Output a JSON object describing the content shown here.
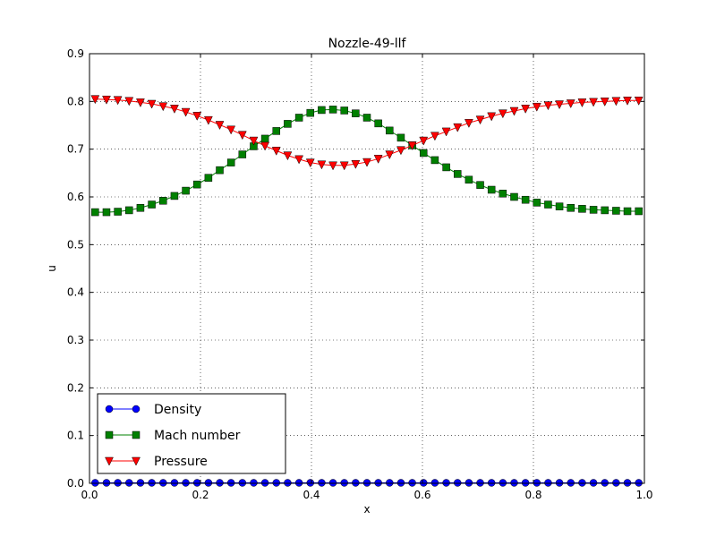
{
  "chart_data": {
    "type": "line",
    "title": "Nozzle-49-llf",
    "xlabel": "x",
    "ylabel": "u",
    "xlim": [
      0.0,
      1.0
    ],
    "ylim": [
      0.0,
      0.9
    ],
    "xticks": [
      "0.0",
      "0.2",
      "0.4",
      "0.6",
      "0.8",
      "1.0"
    ],
    "yticks": [
      "0.0",
      "0.1",
      "0.2",
      "0.3",
      "0.4",
      "0.5",
      "0.6",
      "0.7",
      "0.8",
      "0.9"
    ],
    "grid": true,
    "legend_position": "lower-left",
    "x": [
      0.0102,
      0.0306,
      0.051,
      0.0714,
      0.0918,
      0.1122,
      0.1327,
      0.1531,
      0.1735,
      0.1939,
      0.2143,
      0.2347,
      0.2551,
      0.2755,
      0.2959,
      0.3163,
      0.3367,
      0.3571,
      0.3776,
      0.398,
      0.4184,
      0.4388,
      0.4592,
      0.4796,
      0.5,
      0.5204,
      0.5408,
      0.5612,
      0.5816,
      0.602,
      0.6224,
      0.6429,
      0.6633,
      0.6837,
      0.7041,
      0.7245,
      0.7449,
      0.7653,
      0.7857,
      0.8061,
      0.8265,
      0.8469,
      0.8673,
      0.8878,
      0.9082,
      0.9286,
      0.949,
      0.9694,
      0.9898
    ],
    "series": [
      {
        "name": "Density",
        "color": "#0000ff",
        "marker": "circle",
        "values": [
          0.001,
          0.001,
          0.001,
          0.001,
          0.001,
          0.001,
          0.001,
          0.001,
          0.001,
          0.001,
          0.001,
          0.001,
          0.001,
          0.001,
          0.001,
          0.001,
          0.001,
          0.001,
          0.001,
          0.001,
          0.001,
          0.001,
          0.001,
          0.001,
          0.001,
          0.001,
          0.001,
          0.001,
          0.001,
          0.001,
          0.001,
          0.001,
          0.001,
          0.001,
          0.001,
          0.001,
          0.001,
          0.001,
          0.001,
          0.001,
          0.001,
          0.001,
          0.001,
          0.001,
          0.001,
          0.001,
          0.001,
          0.001,
          0.001
        ]
      },
      {
        "name": "Mach number",
        "color": "#008000",
        "marker": "square",
        "values": [
          0.568,
          0.568,
          0.569,
          0.572,
          0.577,
          0.584,
          0.592,
          0.602,
          0.613,
          0.626,
          0.64,
          0.656,
          0.672,
          0.689,
          0.706,
          0.722,
          0.738,
          0.753,
          0.766,
          0.776,
          0.782,
          0.783,
          0.781,
          0.775,
          0.766,
          0.754,
          0.739,
          0.724,
          0.708,
          0.692,
          0.677,
          0.662,
          0.648,
          0.636,
          0.625,
          0.615,
          0.607,
          0.6,
          0.594,
          0.588,
          0.584,
          0.58,
          0.577,
          0.575,
          0.573,
          0.572,
          0.571,
          0.57,
          0.57
        ]
      },
      {
        "name": "Pressure",
        "color": "#ff0000",
        "marker": "triangle-down",
        "values": [
          0.805,
          0.804,
          0.803,
          0.801,
          0.798,
          0.795,
          0.79,
          0.785,
          0.778,
          0.77,
          0.761,
          0.751,
          0.741,
          0.73,
          0.718,
          0.707,
          0.697,
          0.687,
          0.679,
          0.672,
          0.668,
          0.666,
          0.666,
          0.669,
          0.673,
          0.68,
          0.689,
          0.698,
          0.708,
          0.718,
          0.728,
          0.737,
          0.746,
          0.755,
          0.762,
          0.769,
          0.775,
          0.78,
          0.785,
          0.789,
          0.792,
          0.794,
          0.796,
          0.798,
          0.799,
          0.8,
          0.801,
          0.802,
          0.802
        ]
      }
    ]
  }
}
